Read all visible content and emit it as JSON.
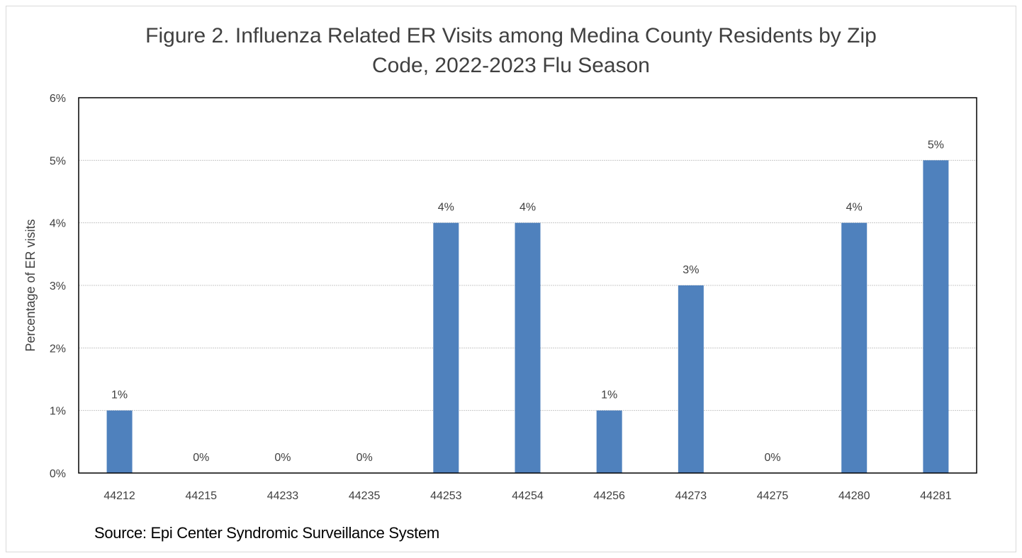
{
  "chart_data": {
    "type": "bar",
    "title_line1": "Figure 2. Influenza Related ER Visits among Medina County Residents by Zip",
    "title_line2": "Code, 2022-2023 Flu Season",
    "ylabel": "Percentage of ER visits",
    "xlabel": "",
    "categories": [
      "44212",
      "44215",
      "44233",
      "44235",
      "44253",
      "44254",
      "44256",
      "44273",
      "44275",
      "44280",
      "44281"
    ],
    "values": [
      1,
      0,
      0,
      0,
      4,
      4,
      1,
      3,
      0,
      4,
      5
    ],
    "data_labels": [
      "1%",
      "0%",
      "0%",
      "0%",
      "4%",
      "4%",
      "1%",
      "3%",
      "0%",
      "4%",
      "5%"
    ],
    "yticks": [
      "0%",
      "1%",
      "2%",
      "3%",
      "4%",
      "5%",
      "6%"
    ],
    "ylim": [
      0,
      6
    ],
    "grid": true,
    "legend": "none",
    "bar_color": "#4f81bd",
    "source": "Source: Epi Center Syndromic Surveillance System"
  }
}
